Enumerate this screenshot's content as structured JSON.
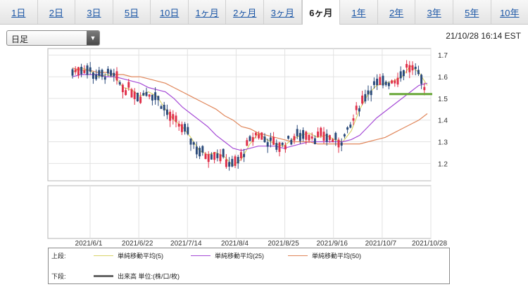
{
  "tabs": [
    {
      "label": "1日"
    },
    {
      "label": "2日"
    },
    {
      "label": "3日"
    },
    {
      "label": "5日"
    },
    {
      "label": "10日"
    },
    {
      "label": "1ヶ月"
    },
    {
      "label": "2ヶ月"
    },
    {
      "label": "3ヶ月"
    },
    {
      "label": "6ヶ月",
      "active": true
    },
    {
      "label": "1年"
    },
    {
      "label": "2年"
    },
    {
      "label": "3年"
    },
    {
      "label": "5年"
    },
    {
      "label": "10年"
    }
  ],
  "period_select": {
    "value": "日足"
  },
  "timestamp": "21/10/28 16:14 EST",
  "legend": {
    "upper_label": "上段:",
    "lower_label": "下段:",
    "items": [
      {
        "label": "単純移動平均(5)",
        "color": "#d9d36a"
      },
      {
        "label": "単純移動平均(25)",
        "color": "#a54ad6"
      },
      {
        "label": "単純移動平均(50)",
        "color": "#e0865a"
      }
    ],
    "volume_label": "出来高 単位:(株/口/枚)"
  },
  "colors": {
    "up": "#e0304a",
    "down": "#2a4a7a",
    "hline": "#6aa83a"
  },
  "chart_data": {
    "type": "candlestick",
    "x_tick_labels": [
      "2021/6/1",
      "2021/6/22",
      "2021/7/14",
      "2021/8/4",
      "2021/8/25",
      "2021/9/16",
      "2021/10/7",
      "2021/10/28"
    ],
    "y_tick_labels": [
      "1.7",
      "1.6",
      "1.5",
      "1.4",
      "1.3",
      "1.2"
    ],
    "ylim": [
      1.12,
      1.73
    ],
    "series": [
      {
        "name": "単純移動平均(5)",
        "values": [
          1.62,
          1.64,
          1.63,
          1.6,
          1.61,
          1.6,
          1.55,
          1.54,
          1.51,
          1.53,
          1.51,
          1.45,
          1.4,
          1.37,
          1.32,
          1.26,
          1.24,
          1.25,
          1.23,
          1.19,
          1.22,
          1.29,
          1.34,
          1.31,
          1.29,
          1.28,
          1.31,
          1.33,
          1.34,
          1.32,
          1.33,
          1.31,
          1.3,
          1.35,
          1.45,
          1.52,
          1.56,
          1.57,
          1.58,
          1.6,
          1.65,
          1.62,
          1.56
        ]
      },
      {
        "name": "単純移動平均(25)",
        "values": [
          1.6,
          1.61,
          1.61,
          1.61,
          1.6,
          1.6,
          1.59,
          1.58,
          1.57,
          1.55,
          1.54,
          1.53,
          1.5,
          1.46,
          1.43,
          1.4,
          1.37,
          1.33,
          1.3,
          1.27,
          1.26,
          1.27,
          1.28,
          1.28,
          1.28,
          1.27,
          1.28,
          1.29,
          1.3,
          1.3,
          1.3,
          1.3,
          1.3,
          1.31,
          1.33,
          1.37,
          1.41,
          1.44,
          1.47,
          1.5,
          1.53,
          1.56,
          1.57
        ]
      },
      {
        "name": "単純移動平均(50)",
        "values": [
          1.64,
          1.63,
          1.63,
          1.62,
          1.62,
          1.61,
          1.61,
          1.6,
          1.6,
          1.59,
          1.58,
          1.57,
          1.55,
          1.53,
          1.51,
          1.49,
          1.47,
          1.45,
          1.42,
          1.4,
          1.37,
          1.36,
          1.34,
          1.33,
          1.32,
          1.31,
          1.3,
          1.3,
          1.3,
          1.29,
          1.29,
          1.29,
          1.29,
          1.29,
          1.29,
          1.3,
          1.31,
          1.32,
          1.34,
          1.36,
          1.38,
          1.4,
          1.43
        ]
      }
    ],
    "support_line": 1.52
  }
}
